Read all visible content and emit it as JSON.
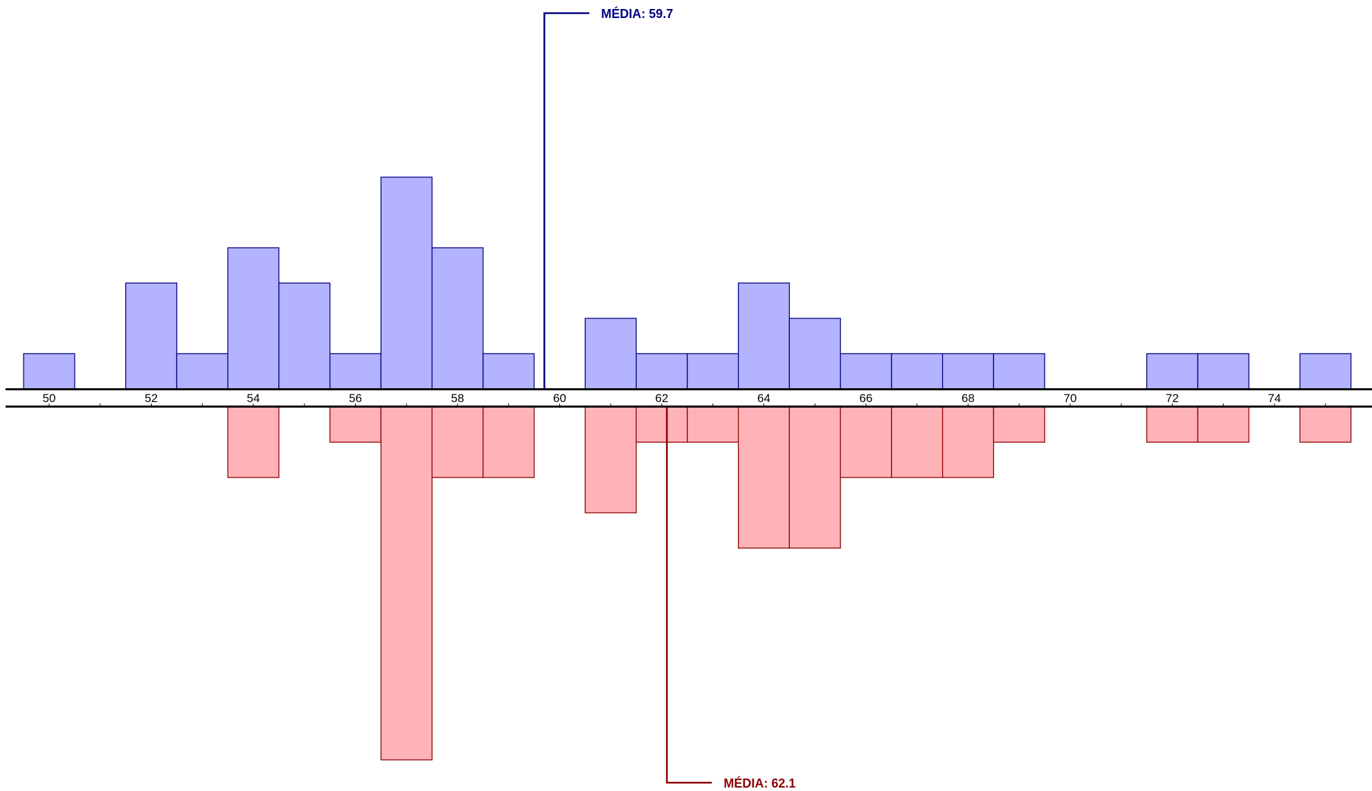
{
  "chart_data": {
    "type": "bar",
    "subtype": "mirrored-histogram",
    "bin_width": 1,
    "xlim": [
      49.5,
      75.5
    ],
    "x_ticks": [
      50,
      52,
      54,
      56,
      58,
      60,
      62,
      64,
      66,
      68,
      70,
      72,
      74
    ],
    "grid": false,
    "series": [
      {
        "direction": "up",
        "color_fill": "#b3b3ff",
        "color_stroke": "#000080",
        "bins": [
          {
            "x": 50,
            "count": 1
          },
          {
            "x": 52,
            "count": 3
          },
          {
            "x": 53,
            "count": 1
          },
          {
            "x": 54,
            "count": 4
          },
          {
            "x": 55,
            "count": 3
          },
          {
            "x": 56,
            "count": 1
          },
          {
            "x": 57,
            "count": 6
          },
          {
            "x": 58,
            "count": 4
          },
          {
            "x": 59,
            "count": 1
          },
          {
            "x": 61,
            "count": 2
          },
          {
            "x": 62,
            "count": 1
          },
          {
            "x": 63,
            "count": 1
          },
          {
            "x": 64,
            "count": 3
          },
          {
            "x": 65,
            "count": 2
          },
          {
            "x": 66,
            "count": 1
          },
          {
            "x": 67,
            "count": 1
          },
          {
            "x": 68,
            "count": 1
          },
          {
            "x": 69,
            "count": 1
          },
          {
            "x": 72,
            "count": 1
          },
          {
            "x": 73,
            "count": 1
          },
          {
            "x": 75,
            "count": 1
          }
        ],
        "mean": 59.7,
        "mean_label": "MÉDIA: 59.7"
      },
      {
        "direction": "down",
        "color_fill": "#ffb3b8",
        "color_stroke": "#8b0000",
        "bins": [
          {
            "x": 54,
            "count": 2
          },
          {
            "x": 56,
            "count": 1
          },
          {
            "x": 57,
            "count": 10
          },
          {
            "x": 58,
            "count": 2
          },
          {
            "x": 59,
            "count": 2
          },
          {
            "x": 61,
            "count": 3
          },
          {
            "x": 62,
            "count": 1
          },
          {
            "x": 63,
            "count": 1
          },
          {
            "x": 64,
            "count": 4
          },
          {
            "x": 65,
            "count": 4
          },
          {
            "x": 66,
            "count": 2
          },
          {
            "x": 67,
            "count": 2
          },
          {
            "x": 68,
            "count": 2
          },
          {
            "x": 69,
            "count": 1
          },
          {
            "x": 72,
            "count": 1
          },
          {
            "x": 73,
            "count": 1
          },
          {
            "x": 75,
            "count": 1
          }
        ],
        "mean": 62.1,
        "mean_label": "MÉDIA: 62.1"
      }
    ]
  }
}
